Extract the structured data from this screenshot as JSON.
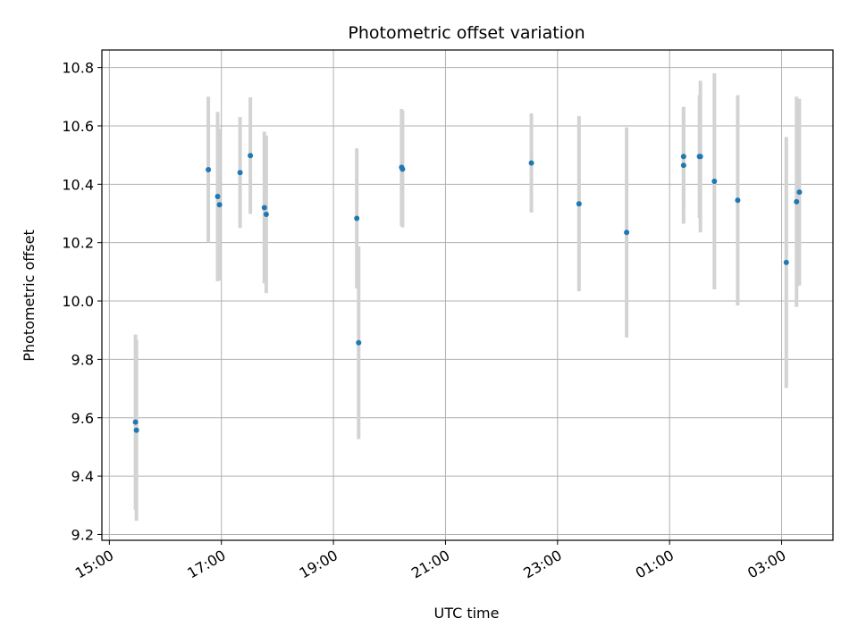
{
  "chart_data": {
    "type": "scatter",
    "title": "Photometric offset variation",
    "xlabel": "UTC time",
    "ylabel": "Photometric offset",
    "x_ticks": [
      "15:00",
      "17:00",
      "19:00",
      "21:00",
      "23:00",
      "01:00",
      "03:00"
    ],
    "y_ticks": [
      "9.2",
      "9.4",
      "9.6",
      "9.8",
      "10.0",
      "10.2",
      "10.4",
      "10.6",
      "10.8"
    ],
    "ylim": [
      9.18,
      10.86
    ],
    "xlim": [
      "14:52",
      "03:55"
    ],
    "grid": true,
    "point_color": "#1f77b4",
    "errorbar_color": "#d3d3d3",
    "points": [
      {
        "time": "15:28",
        "y": 9.585,
        "err": 0.3
      },
      {
        "time": "15:29",
        "y": 9.557,
        "err": 0.31
      },
      {
        "time": "16:46",
        "y": 10.45,
        "err": 0.25
      },
      {
        "time": "16:56",
        "y": 10.358,
        "err": 0.29
      },
      {
        "time": "16:58",
        "y": 10.33,
        "err": 0.26
      },
      {
        "time": "17:20",
        "y": 10.44,
        "err": 0.19
      },
      {
        "time": "17:31",
        "y": 10.498,
        "err": 0.2
      },
      {
        "time": "17:46",
        "y": 10.32,
        "err": 0.26
      },
      {
        "time": "17:48",
        "y": 10.297,
        "err": 0.27
      },
      {
        "time": "19:25",
        "y": 10.283,
        "err": 0.24
      },
      {
        "time": "19:27",
        "y": 9.857,
        "err": 0.33
      },
      {
        "time": "20:13",
        "y": 10.458,
        "err": 0.2
      },
      {
        "time": "20:14",
        "y": 10.452,
        "err": 0.2
      },
      {
        "time": "22:32",
        "y": 10.473,
        "err": 0.17
      },
      {
        "time": "23:23",
        "y": 10.333,
        "err": 0.3
      },
      {
        "time": "00:14",
        "y": 10.235,
        "err": 0.36
      },
      {
        "time": "01:15",
        "y": 10.495,
        "err": 0.17
      },
      {
        "time": "01:15",
        "y": 10.465,
        "err": 0.2
      },
      {
        "time": "01:32",
        "y": 10.495,
        "err": 0.21
      },
      {
        "time": "01:33",
        "y": 10.495,
        "err": 0.26
      },
      {
        "time": "01:48",
        "y": 10.41,
        "err": 0.37
      },
      {
        "time": "02:13",
        "y": 10.345,
        "err": 0.36
      },
      {
        "time": "03:05",
        "y": 10.132,
        "err": 0.43
      },
      {
        "time": "03:16",
        "y": 10.34,
        "err": 0.36
      },
      {
        "time": "03:19",
        "y": 10.373,
        "err": 0.32
      }
    ]
  }
}
